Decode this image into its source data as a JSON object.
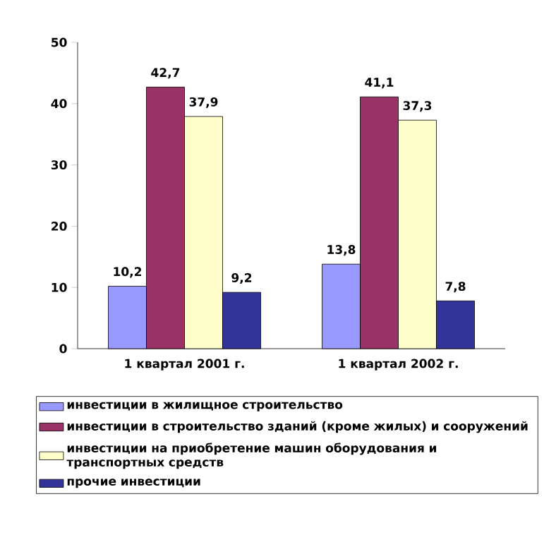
{
  "chart_data": {
    "type": "bar",
    "categories": [
      "1 квартал 2001 г.",
      "1 квартал 2002 г."
    ],
    "series": [
      {
        "name": "инвестиции в жилищное строительство",
        "color": "#9999ff",
        "values": [
          10.2,
          13.8
        ],
        "value_labels": [
          "10,2",
          "13,8"
        ]
      },
      {
        "name": "инвестиции в строительство зданий (кроме жилых) и сооружений",
        "color": "#993366",
        "values": [
          42.7,
          41.1
        ],
        "value_labels": [
          "42,7",
          "41,1"
        ]
      },
      {
        "name": "инвестиции на приобретение машин оборудования и транспортных средств",
        "color": "#ffffcc",
        "values": [
          37.9,
          37.3
        ],
        "value_labels": [
          "37,9",
          "37,3"
        ]
      },
      {
        "name": "прочие инвестиции",
        "color": "#333399",
        "values": [
          9.2,
          7.8
        ],
        "value_labels": [
          "9,2",
          "7,8"
        ]
      }
    ],
    "ylim": [
      0,
      50
    ],
    "yticks": [
      0,
      10,
      20,
      30,
      40,
      50
    ],
    "grid": false,
    "legend": "bottom"
  }
}
